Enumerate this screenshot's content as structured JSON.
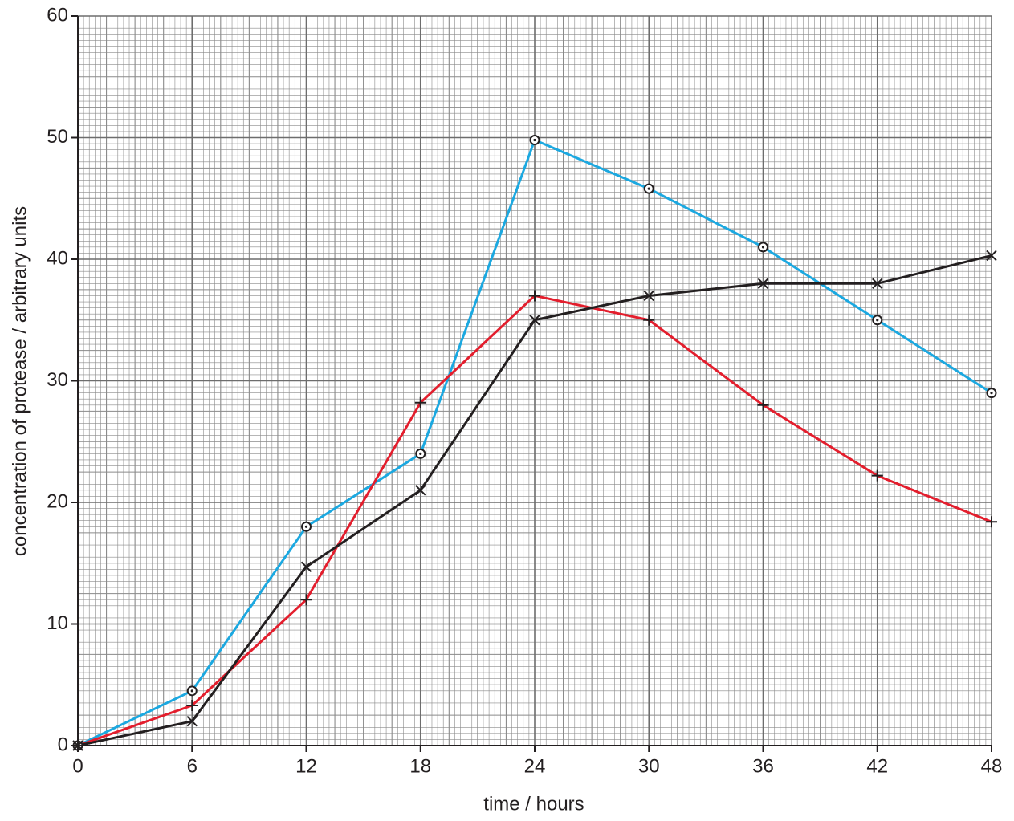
{
  "chart_data": {
    "type": "line",
    "x_label": "time / hours",
    "y_label": "concentration of protease / arbitrary units",
    "x": [
      0,
      6,
      12,
      18,
      24,
      30,
      36,
      42,
      48
    ],
    "series": [
      {
        "color": "#1ba8e0",
        "marker": "circle",
        "values": [
          0,
          4.5,
          18,
          24,
          49.8,
          45.8,
          41,
          35,
          29
        ]
      },
      {
        "color": "#e31e2d",
        "marker": "plus",
        "values": [
          0,
          3.3,
          12,
          28.2,
          37,
          35,
          28,
          22.2,
          18.4
        ]
      },
      {
        "color": "#231f20",
        "marker": "cross",
        "values": [
          0,
          2,
          14.7,
          21,
          35,
          37,
          38,
          38,
          40.3
        ]
      }
    ],
    "xlim": [
      0,
      48
    ],
    "xticks": [
      0,
      6,
      12,
      18,
      24,
      30,
      36,
      42,
      48
    ],
    "ylim": [
      0,
      60
    ],
    "yticks": [
      0,
      10,
      20,
      30,
      40,
      50,
      60
    ],
    "grid": true
  }
}
